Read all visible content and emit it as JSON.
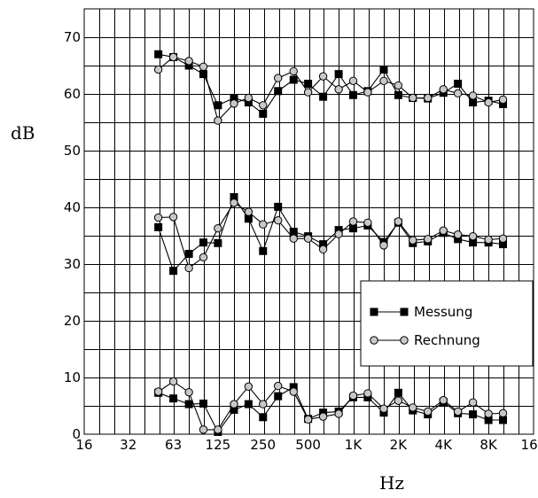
{
  "chart_data": {
    "type": "line",
    "xlabel": "Hz",
    "ylabel": "dB",
    "x_scale": "log",
    "xlim": [
      16,
      16000
    ],
    "ylim": [
      0,
      75
    ],
    "grid": true,
    "legend_position": "lower-right",
    "x_ticks": [
      {
        "value": 16,
        "label": "16"
      },
      {
        "value": 31.5,
        "label": "32"
      },
      {
        "value": 63,
        "label": "63"
      },
      {
        "value": 125,
        "label": "125"
      },
      {
        "value": 250,
        "label": "250"
      },
      {
        "value": 500,
        "label": "500"
      },
      {
        "value": 1000,
        "label": "1K"
      },
      {
        "value": 2000,
        "label": "2K"
      },
      {
        "value": 4000,
        "label": "4K"
      },
      {
        "value": 8000,
        "label": "8K"
      },
      {
        "value": 16000,
        "label": "16K"
      }
    ],
    "y_ticks": [
      {
        "value": 0,
        "label": "0"
      },
      {
        "value": 10,
        "label": "10"
      },
      {
        "value": 20,
        "label": "20"
      },
      {
        "value": 30,
        "label": "30"
      },
      {
        "value": 40,
        "label": "40"
      },
      {
        "value": 50,
        "label": "50"
      },
      {
        "value": 60,
        "label": "60"
      },
      {
        "value": 70,
        "label": "70"
      }
    ],
    "x": [
      50,
      63,
      80,
      100,
      125,
      160,
      200,
      250,
      315,
      400,
      500,
      630,
      800,
      1000,
      1250,
      1600,
      2000,
      2500,
      3150,
      4000,
      5000,
      6300,
      8000,
      10000
    ],
    "curve_groups": [
      {
        "series": [
          {
            "name": "Messung",
            "values": [
              67,
              66.5,
              65,
              63.5,
              58,
              59.3,
              58.5,
              56.5,
              60.5,
              62.5,
              61.8,
              59.5,
              63.5,
              59.8,
              60.5,
              64.3,
              59.8,
              59.3,
              59.2,
              60.2,
              61.8,
              58.5,
              58.8,
              58.2
            ]
          },
          {
            "name": "Rechnung",
            "values": [
              64.3,
              66.5,
              65.8,
              64.8,
              55.3,
              58.3,
              59.3,
              58,
              62.8,
              64,
              60.3,
              63.1,
              60.8,
              62.3,
              60.3,
              62.3,
              61.5,
              59.3,
              59.3,
              60.8,
              60.1,
              59.7,
              58.5,
              59
            ]
          }
        ]
      },
      {
        "series": [
          {
            "name": "Messung",
            "values": [
              36.5,
              28.8,
              31.8,
              33.8,
              33.7,
              41.8,
              38,
              32.3,
              40.1,
              35.7,
              34.9,
              33.5,
              36,
              36.3,
              36.8,
              33.9,
              37.3,
              33.7,
              34,
              35.5,
              34.4,
              33.8,
              33.8,
              33.5
            ]
          },
          {
            "name": "Rechnung",
            "values": [
              38.2,
              38.3,
              29.3,
              31.2,
              36.3,
              40.8,
              39.2,
              37,
              37.7,
              34.5,
              34.5,
              32.6,
              35.3,
              37.5,
              37.3,
              33.3,
              37.5,
              34.2,
              34.4,
              35.9,
              35.2,
              34.9,
              34.3,
              34.5
            ]
          }
        ]
      },
      {
        "series": [
          {
            "name": "Messung",
            "values": [
              7.3,
              6.3,
              5.3,
              5.4,
              0.4,
              4.3,
              5.3,
              3,
              6.7,
              8.3,
              2.7,
              3.8,
              4,
              6.5,
              6.5,
              3.8,
              7.3,
              4.2,
              3.5,
              5.7,
              3.7,
              3.5,
              2.5,
              2.5
            ]
          },
          {
            "name": "Rechnung",
            "values": [
              7.5,
              9.3,
              7.4,
              0.8,
              0.8,
              5.3,
              8.4,
              5.3,
              8.5,
              7.5,
              2.6,
              3.1,
              3.6,
              6.8,
              7.2,
              4.5,
              5.9,
              4.7,
              4,
              6,
              4,
              5.6,
              3.6,
              3.7
            ]
          }
        ]
      }
    ],
    "legend": {
      "entries": [
        {
          "label": "Messung",
          "marker": "filled-square",
          "color": "#000000"
        },
        {
          "label": "Rechnung",
          "marker": "grey-circle",
          "color": "#c8c8c8"
        }
      ]
    },
    "colors": {
      "messung_marker": "#000000",
      "rechnung_marker": "#c8c8c8",
      "lines": "#000000",
      "background": "#ffffff"
    }
  }
}
